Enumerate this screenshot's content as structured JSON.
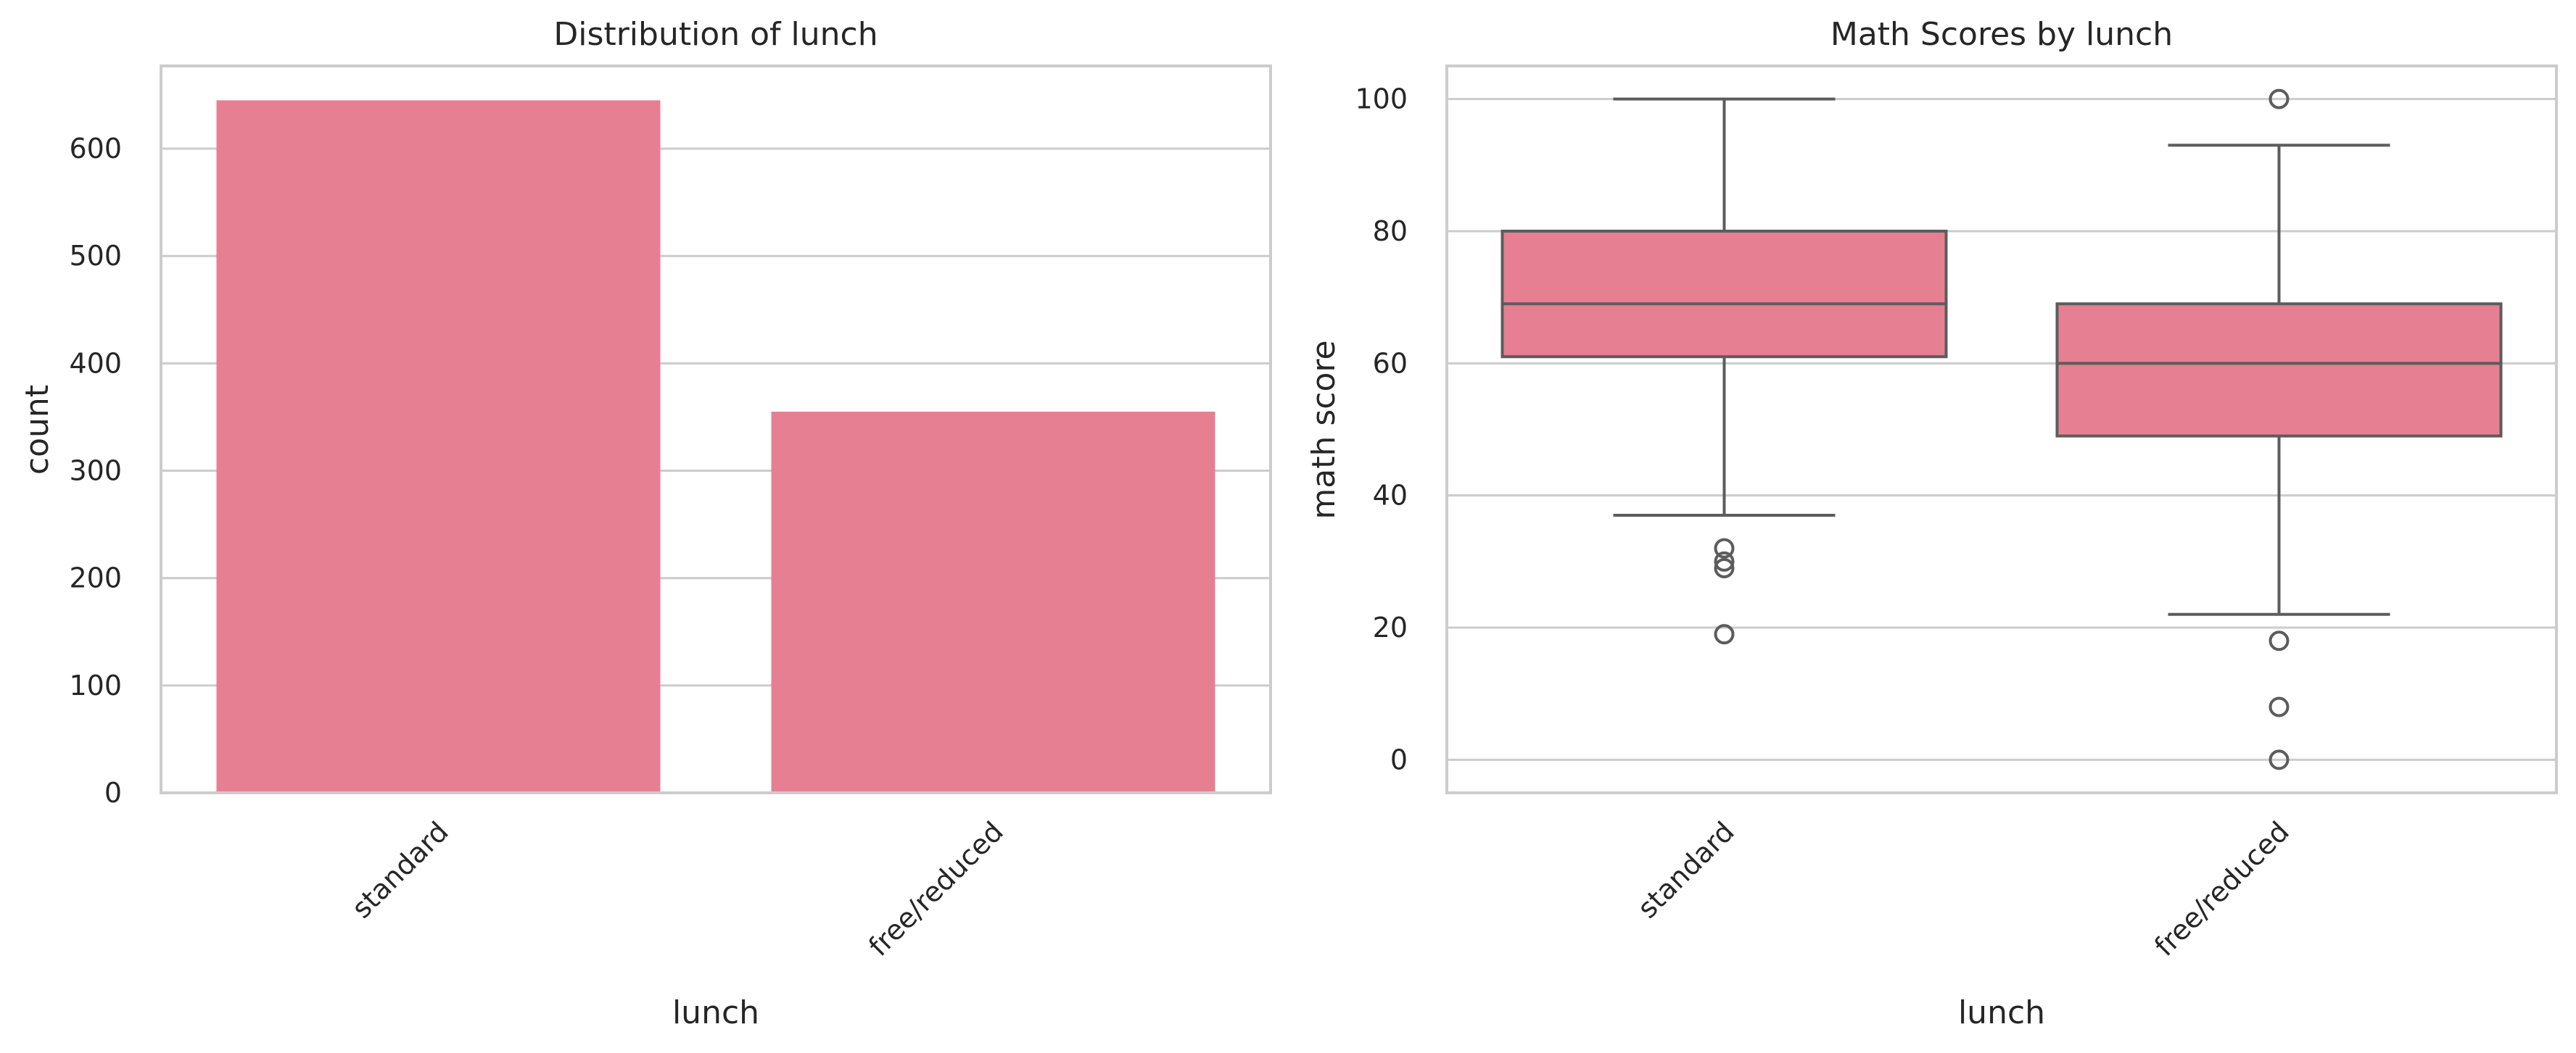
{
  "colors": {
    "bar_fill": "#e77f93",
    "box_fill": "#e77f93",
    "line": "#5c5c5c",
    "grid": "#cccccc",
    "frame": "#cccccc",
    "text": "#262626"
  },
  "chart_data": [
    {
      "type": "bar",
      "title": "Distribution of lunch",
      "xlabel": "lunch",
      "ylabel": "count",
      "categories": [
        "standard",
        "free/reduced"
      ],
      "values": [
        645,
        355
      ],
      "ylim": [
        0,
        677
      ],
      "yticks": [
        0,
        100,
        200,
        300,
        400,
        500,
        600
      ],
      "grid": "horizontal",
      "legend": "none"
    },
    {
      "type": "box",
      "title": "Math Scores by lunch",
      "xlabel": "lunch",
      "ylabel": "math score",
      "categories": [
        "standard",
        "free/reduced"
      ],
      "boxes": [
        {
          "min": 37,
          "q1": 61,
          "median": 69,
          "q3": 80,
          "max": 100,
          "outliers": [
            32,
            30,
            29,
            19
          ]
        },
        {
          "min": 22,
          "q1": 49,
          "median": 60,
          "q3": 69,
          "max": 93,
          "outliers": [
            100,
            18,
            8,
            0
          ]
        }
      ],
      "ylim": [
        -5,
        105
      ],
      "yticks": [
        0,
        20,
        40,
        60,
        80,
        100
      ],
      "grid": "horizontal",
      "legend": "none"
    }
  ]
}
